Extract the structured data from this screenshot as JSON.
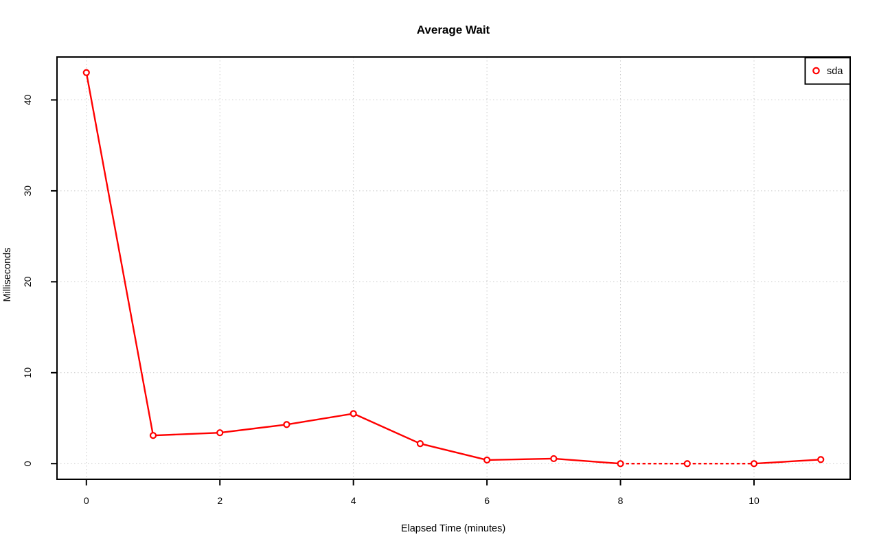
{
  "chart_data": {
    "type": "line",
    "title": "Average Wait",
    "xlabel": "Elapsed Time (minutes)",
    "ylabel": "Milliseconds",
    "x": [
      0,
      1,
      2,
      3,
      4,
      5,
      6,
      7,
      8,
      9,
      10,
      11
    ],
    "series": [
      {
        "name": "sda",
        "color": "#ff0000",
        "marker": "open-circle",
        "values": [
          43.0,
          3.1,
          3.4,
          4.3,
          5.5,
          2.2,
          0.4,
          0.55,
          0.0,
          0.0,
          0.0,
          0.45
        ],
        "dashed_segments": [
          [
            8,
            9
          ],
          [
            9,
            10
          ]
        ]
      }
    ],
    "xticks": [
      0,
      2,
      4,
      6,
      8,
      10
    ],
    "yticks": [
      0,
      10,
      20,
      30,
      40
    ],
    "xlim": [
      -0.44,
      11.44
    ],
    "ylim": [
      -1.72,
      44.72
    ],
    "grid": "dotted",
    "grid_color": "#c9c9c9",
    "axis_color": "#000000",
    "background": "#ffffff",
    "legend": {
      "position": "top-right",
      "entries": [
        {
          "label": "sda",
          "color": "#ff0000",
          "marker": "open-circle"
        }
      ]
    }
  }
}
